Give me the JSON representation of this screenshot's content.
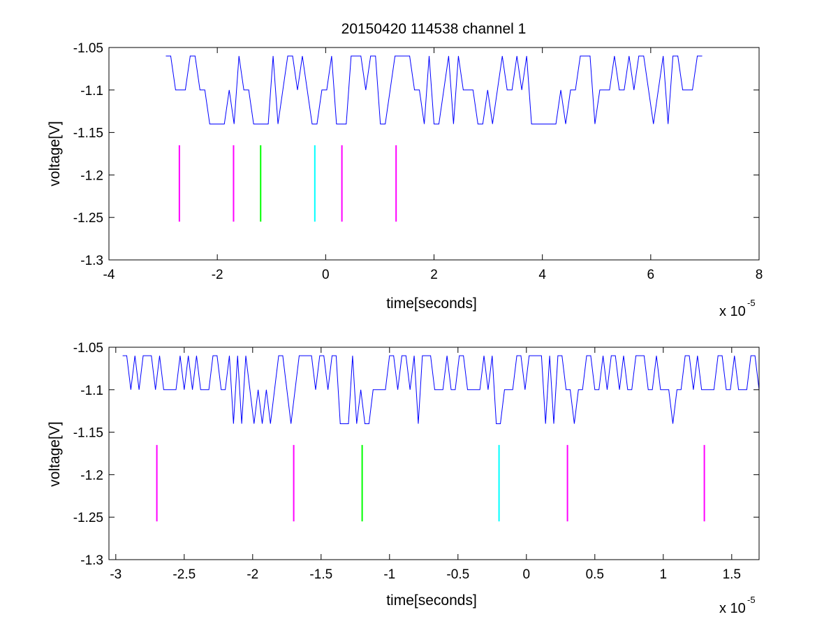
{
  "figure": {
    "title": "20150420 114538 channel 1",
    "colors": {
      "signal": "#0000ff",
      "marker_magenta": "#ff00ff",
      "marker_green": "#00ff00",
      "marker_cyan": "#00ffff",
      "axes": "#000000",
      "background": "#ffffff"
    }
  },
  "chart_data": [
    {
      "type": "line",
      "title": "20150420 114538 channel 1",
      "xlabel": "time[seconds]",
      "ylabel": "voltage[V]",
      "x_exponent_label": "x 10",
      "x_exponent": "-5",
      "xlim": [
        -4e-05,
        8e-05
      ],
      "ylim": [
        -1.3,
        -1.05
      ],
      "xticks": [
        -4e-05,
        -2e-05,
        0,
        2e-05,
        4e-05,
        6e-05,
        8e-05
      ],
      "xtick_labels": [
        "-4",
        "-2",
        "0",
        "2",
        "4",
        "6",
        "8"
      ],
      "yticks": [
        -1.3,
        -1.25,
        -1.2,
        -1.15,
        -1.1,
        -1.05
      ],
      "ytick_labels": [
        "-1.3",
        "-1.25",
        "-1.2",
        "-1.15",
        "-1.1",
        "-1.05"
      ],
      "grid": false,
      "series": [
        {
          "kind": "signal",
          "color": "#0000ff",
          "x_start": -2.95e-05,
          "x_end": 7e-05,
          "levels": [
            -1.06,
            -1.1,
            -1.14
          ],
          "baseline": -1.1,
          "dips": [
            -2.13e-05,
            -2.02e-05,
            -1.93e-05,
            -1.84e-05,
            -1.7e-05,
            -1.35e-05,
            -1.29e-05,
            -1.2e-05,
            -1.1e-05,
            -9e-06,
            -2.5e-06,
            -1.8e-06,
            2.5e-06,
            3.5e-06,
            1.05e-05,
            1.85e-05,
            1.98e-05,
            2.05e-05,
            2.37e-05,
            2.86e-05,
            3.05e-05,
            3.77e-05,
            3.87e-05,
            3.96e-05,
            4.12e-05,
            4.21e-05,
            4.45e-05,
            4.94e-05,
            6.04e-05,
            6.35e-05
          ]
        },
        {
          "kind": "markers",
          "y_range": [
            -1.255,
            -1.165
          ],
          "x": [
            -2.7e-05,
            -1.7e-05,
            -1.2e-05,
            -2e-06,
            3e-06,
            1.3e-05
          ],
          "colors": [
            "#ff00ff",
            "#ff00ff",
            "#00ff00",
            "#00ffff",
            "#ff00ff",
            "#ff00ff"
          ]
        }
      ]
    },
    {
      "type": "line",
      "title": "",
      "xlabel": "time[seconds]",
      "ylabel": "voltage[V]",
      "x_exponent_label": "x 10",
      "x_exponent": "-5",
      "xlim": [
        -3.05e-05,
        1.7e-05
      ],
      "ylim": [
        -1.3,
        -1.05
      ],
      "xticks": [
        -3e-05,
        -2.5e-05,
        -2e-05,
        -1.5e-05,
        -1e-05,
        -5e-06,
        0,
        5e-06,
        1e-05,
        1.5e-05
      ],
      "xtick_labels": [
        "-3",
        "-2.5",
        "-2",
        "-1.5",
        "-1",
        "-0.5",
        "0",
        "0.5",
        "1",
        "1.5"
      ],
      "yticks": [
        -1.3,
        -1.25,
        -1.2,
        -1.15,
        -1.1,
        -1.05
      ],
      "ytick_labels": [
        "-1.3",
        "-1.25",
        "-1.2",
        "-1.15",
        "-1.1",
        "-1.05"
      ],
      "grid": false,
      "series": [
        {
          "kind": "signal",
          "color": "#0000ff",
          "x_start": -2.95e-05,
          "x_end": 1.7e-05,
          "levels": [
            -1.06,
            -1.1,
            -1.14
          ],
          "baseline": -1.1,
          "dips": [
            -2.13e-05,
            -2.07e-05,
            -1.99e-05,
            -1.93e-05,
            -1.88e-05,
            -1.71e-05,
            -1.36e-05,
            -1.32e-05,
            -1.29e-05,
            -1.25e-05,
            -1.19e-05,
            -1.16e-05,
            -8e-06,
            -2.1e-06,
            -1.9e-06,
            1.5e-06,
            2e-06,
            3.5e-06,
            1.06e-05
          ]
        },
        {
          "kind": "markers",
          "y_range": [
            -1.255,
            -1.165
          ],
          "x": [
            -2.7e-05,
            -1.7e-05,
            -1.2e-05,
            -2e-06,
            3e-06,
            1.3e-05
          ],
          "colors": [
            "#ff00ff",
            "#ff00ff",
            "#00ff00",
            "#00ffff",
            "#ff00ff",
            "#ff00ff"
          ]
        }
      ]
    }
  ]
}
